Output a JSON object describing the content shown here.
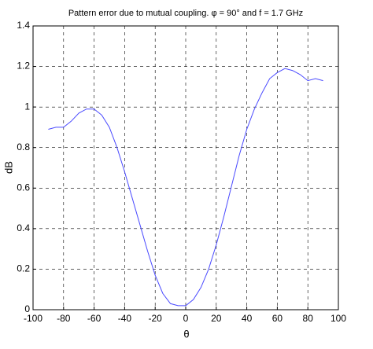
{
  "chart_data": {
    "type": "line",
    "title": "Pattern error due to mutual coupling. φ = 90° and f = 1.7 GHz",
    "x_label": "θ",
    "y_label": "dB",
    "x": [
      -90,
      -85,
      -80,
      -75,
      -70,
      -65,
      -60,
      -55,
      -50,
      -45,
      -40,
      -35,
      -30,
      -25,
      -20,
      -15,
      -10,
      -5,
      0,
      5,
      10,
      15,
      20,
      25,
      30,
      35,
      40,
      45,
      50,
      55,
      60,
      65,
      70,
      75,
      80,
      85,
      90
    ],
    "series": [
      {
        "color": "#4a4aff",
        "values": [
          0.89,
          0.9,
          0.9,
          0.93,
          0.97,
          0.99,
          0.99,
          0.96,
          0.9,
          0.8,
          0.68,
          0.55,
          0.42,
          0.29,
          0.17,
          0.08,
          0.03,
          0.02,
          0.02,
          0.05,
          0.11,
          0.2,
          0.32,
          0.46,
          0.61,
          0.76,
          0.89,
          0.99,
          1.07,
          1.14,
          1.17,
          1.19,
          1.18,
          1.16,
          1.13,
          1.14,
          1.13
        ]
      }
    ],
    "xlim": [
      -100,
      100
    ],
    "xticks": [
      -100,
      -80,
      -60,
      -40,
      -20,
      0,
      20,
      40,
      60,
      80,
      100
    ],
    "ylim": [
      0,
      1.4
    ],
    "yticks": [
      0,
      0.2,
      0.4,
      0.6,
      0.8,
      1,
      1.2,
      1.4
    ],
    "grid": true
  }
}
